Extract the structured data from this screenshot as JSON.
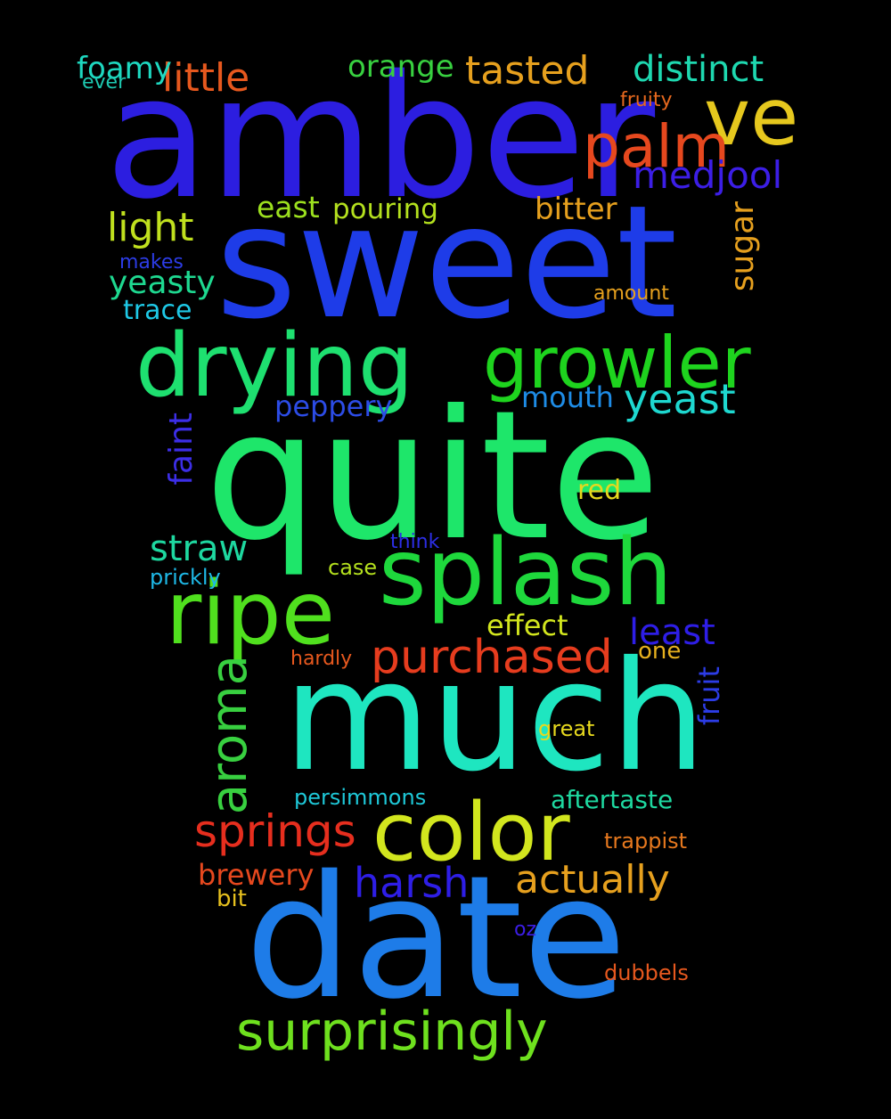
{
  "words": [
    {
      "text": "amber",
      "color": "#2c1ee0"
    },
    {
      "text": "sweet",
      "color": "#1e3ce8"
    },
    {
      "text": "quite",
      "color": "#1ee66a"
    },
    {
      "text": "much",
      "color": "#1ee6c0"
    },
    {
      "text": "date",
      "color": "#1e7ce8"
    },
    {
      "text": "drying",
      "color": "#1ee070"
    },
    {
      "text": "growler",
      "color": "#1ed41e"
    },
    {
      "text": "splash",
      "color": "#1ed83c"
    },
    {
      "text": "ripe",
      "color": "#50e01e"
    },
    {
      "text": "color",
      "color": "#d2e61e"
    },
    {
      "text": "ve",
      "color": "#e6c81e"
    },
    {
      "text": "palm",
      "color": "#e6481e"
    },
    {
      "text": "surprisingly",
      "color": "#6ee01e"
    },
    {
      "text": "aroma",
      "color": "#38d040"
    },
    {
      "text": "purchased",
      "color": "#e63c1e"
    },
    {
      "text": "springs",
      "color": "#e62e1e"
    },
    {
      "text": "harsh",
      "color": "#2e1ee6"
    },
    {
      "text": "actually",
      "color": "#e6a01e"
    },
    {
      "text": "tasted",
      "color": "#e6a01e"
    },
    {
      "text": "distinct",
      "color": "#1ed8b0"
    },
    {
      "text": "little",
      "color": "#e6581e"
    },
    {
      "text": "orange",
      "color": "#38d040"
    },
    {
      "text": "foamy",
      "color": "#1ed8c0"
    },
    {
      "text": "medjool",
      "color": "#3c1ee6"
    },
    {
      "text": "light",
      "color": "#c0e01e"
    },
    {
      "text": "yeast",
      "color": "#1ed8d0"
    },
    {
      "text": "straw",
      "color": "#1ed8a0"
    },
    {
      "text": "least",
      "color": "#2e1ee6"
    },
    {
      "text": "bitter",
      "color": "#e6a01e"
    },
    {
      "text": "east",
      "color": "#9ce01e"
    },
    {
      "text": "pouring",
      "color": "#b4e01e"
    },
    {
      "text": "yeasty",
      "color": "#1ed890"
    },
    {
      "text": "trace",
      "color": "#1ec8e6"
    },
    {
      "text": "sugar",
      "color": "#e6a01e"
    },
    {
      "text": "peppery",
      "color": "#2c4ce6"
    },
    {
      "text": "mouth",
      "color": "#1e8ce6"
    },
    {
      "text": "faint",
      "color": "#3c2ee6"
    },
    {
      "text": "effect",
      "color": "#d2e61e"
    },
    {
      "text": "red",
      "color": "#e6d81e"
    },
    {
      "text": "fruit",
      "color": "#2c3ce6"
    },
    {
      "text": "brewery",
      "color": "#e6481e"
    },
    {
      "text": "aftertaste",
      "color": "#1ed8a0"
    },
    {
      "text": "trappist",
      "color": "#e6781e"
    },
    {
      "text": "persimmons",
      "color": "#1ec8d8"
    },
    {
      "text": "great",
      "color": "#e6d81e"
    },
    {
      "text": "one",
      "color": "#e6b01e"
    },
    {
      "text": "hardly",
      "color": "#e6581e"
    },
    {
      "text": "case",
      "color": "#b4e01e"
    },
    {
      "text": "prickly",
      "color": "#1eb8e6"
    },
    {
      "text": "think",
      "color": "#2c2ee6"
    },
    {
      "text": "makes",
      "color": "#2c3ce6"
    },
    {
      "text": "amount",
      "color": "#e6a01e"
    },
    {
      "text": "fruity",
      "color": "#e6681e"
    },
    {
      "text": "ever",
      "color": "#1ec8b0"
    },
    {
      "text": "bit",
      "color": "#e6c01e"
    },
    {
      "text": "oz",
      "color": "#3c1ee6"
    },
    {
      "text": "dubbels",
      "color": "#e6581e"
    }
  ]
}
